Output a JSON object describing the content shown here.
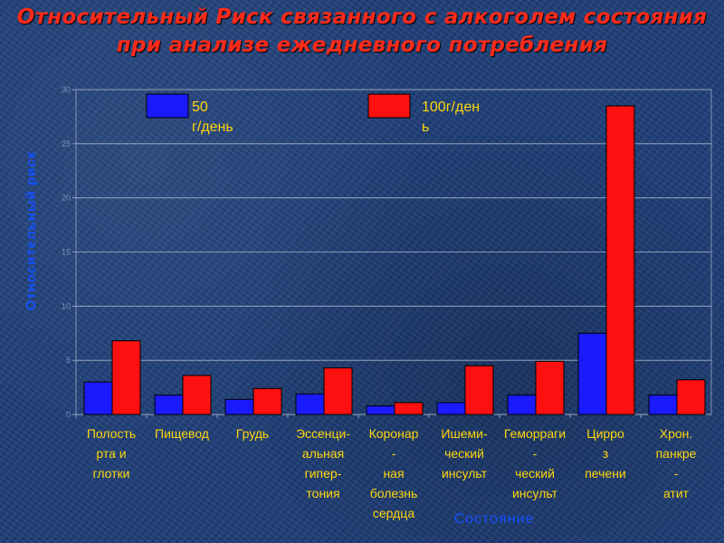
{
  "title": "Относительный Риск связанного с алкоголем состояния при анализе ежедневного потребления",
  "chart_data": {
    "type": "bar",
    "title": "Относительный Риск связанного с алкоголем состояния при анализе ежедневного потребления",
    "ylabel": "Относительный  риск",
    "xlabel": "Состояние",
    "ylim": [
      0,
      30
    ],
    "yticks": [
      0,
      5,
      10,
      15,
      20,
      25,
      30
    ],
    "grid": true,
    "legend_position": "top",
    "categories": [
      [
        "Полость",
        "рта и",
        "глотки"
      ],
      [
        "Пищевод"
      ],
      [
        "Грудь"
      ],
      [
        "Эссенци-",
        "альная",
        "гипер-",
        "тония"
      ],
      [
        "Коронар",
        "-",
        "ная",
        "болезнь",
        "сердца"
      ],
      [
        "Ишеми-",
        "ческий",
        "инсульт"
      ],
      [
        "Геморраги",
        "-",
        "ческий",
        "инсульт"
      ],
      [
        "Цирро",
        "з",
        "печени"
      ],
      [
        "Хрон.",
        "панкре",
        "-",
        "атит"
      ]
    ],
    "series": [
      {
        "name": "50 г/день",
        "legend_lines": [
          "50",
          "г/день"
        ],
        "color": "#1a1aff",
        "values": [
          3.0,
          1.8,
          1.4,
          1.9,
          0.8,
          1.1,
          1.8,
          7.5,
          1.8
        ]
      },
      {
        "name": "100г/день",
        "legend_lines": [
          "100г/ден",
          "ь"
        ],
        "color": "#ff1010",
        "values": [
          6.8,
          3.6,
          2.4,
          4.3,
          1.1,
          4.5,
          4.9,
          28.5,
          3.2
        ]
      }
    ]
  }
}
